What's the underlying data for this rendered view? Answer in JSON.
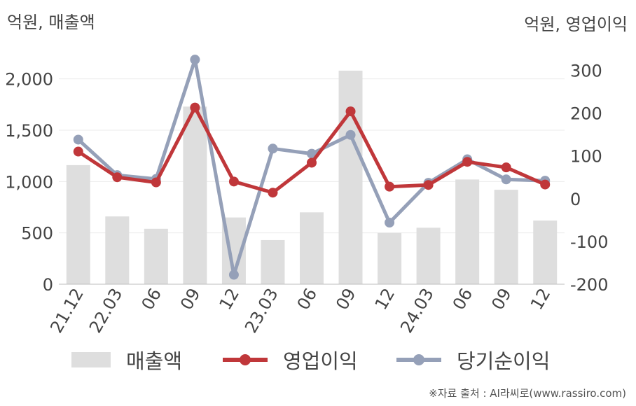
{
  "units": {
    "left": "억원, 매출액",
    "right": "억원, 영업이익"
  },
  "chart_data": {
    "type": "bar+line",
    "categories": [
      "21.12",
      "22.03",
      "06",
      "09",
      "12",
      "23.03",
      "06",
      "09",
      "12",
      "24.03",
      "06",
      "09",
      "12"
    ],
    "left_axis": {
      "ylim": [
        0,
        2250
      ],
      "ticks": [
        0,
        500,
        1000,
        1500,
        2000
      ],
      "tick_labels": [
        "0",
        "500",
        "1,000",
        "1,500",
        "2,000"
      ]
    },
    "right_axis": {
      "ylim": [
        -200,
        340
      ],
      "ticks": [
        -200,
        -100,
        0,
        100,
        200,
        300
      ],
      "tick_labels": [
        "-200",
        "-100",
        "0",
        "100",
        "200",
        "300"
      ]
    },
    "series": [
      {
        "name": "매출액",
        "type": "bar",
        "axis": "left",
        "color": "#dedede",
        "values": [
          1160,
          660,
          540,
          1730,
          650,
          430,
          700,
          2080,
          500,
          550,
          1020,
          920,
          620
        ]
      },
      {
        "name": "영업이익",
        "type": "line",
        "axis": "right",
        "color": "#c0373a",
        "values": [
          110,
          50,
          38,
          213,
          40,
          14,
          84,
          204,
          28,
          32,
          86,
          73,
          33
        ]
      },
      {
        "name": "당기순이익",
        "type": "line",
        "axis": "right",
        "color": "#95a0b8",
        "values": [
          138,
          55,
          46,
          325,
          -178,
          117,
          105,
          149,
          -56,
          37,
          92,
          45,
          42
        ]
      }
    ],
    "grid": true,
    "legend_position": "bottom"
  },
  "source": "※자료 출처 : AI라씨로(www.rassiro.com)"
}
